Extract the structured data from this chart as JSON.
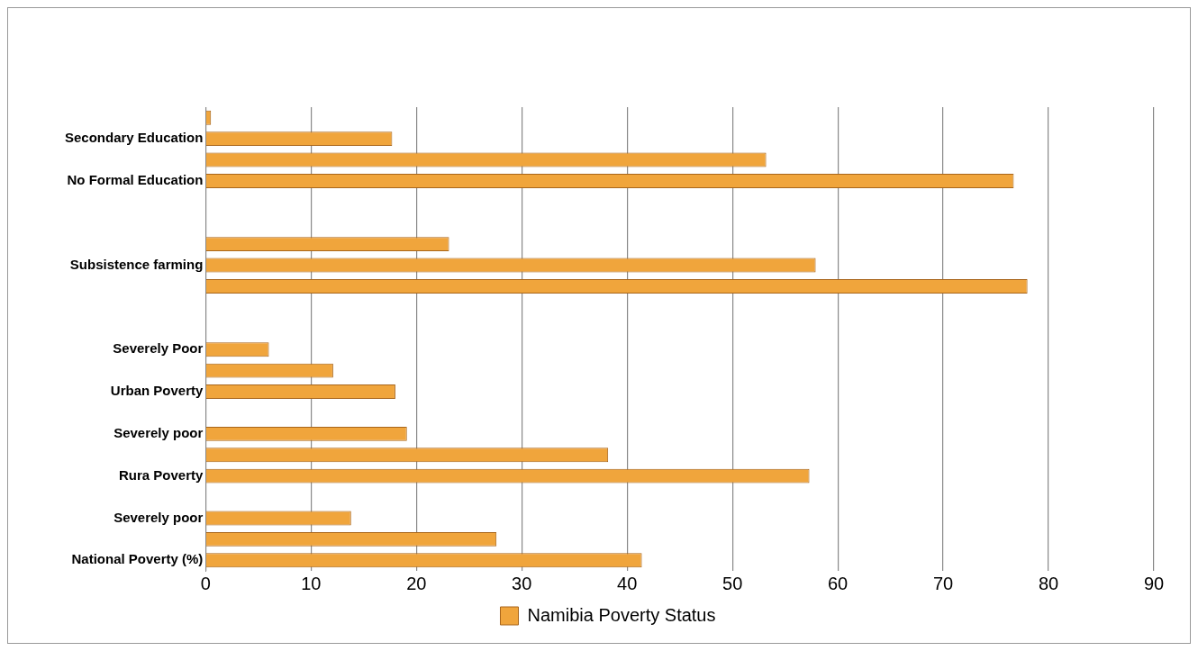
{
  "chart_data": {
    "type": "bar",
    "orientation": "horizontal",
    "categories": [
      null,
      "Secondary Education",
      null,
      "No Formal Education",
      null,
      null,
      null,
      "Subsistence farming",
      null,
      null,
      null,
      "Severely Poor",
      null,
      "Urban Poverty",
      null,
      "Severely poor",
      null,
      "Rura Poverty",
      null,
      "Severely poor",
      null,
      "National Poverty (%)"
    ],
    "series": [
      {
        "name": "Namibia Poverty Status",
        "color": "#f0a53c",
        "values": [
          0.5,
          17.7,
          53.2,
          76.7,
          null,
          null,
          23.1,
          57.9,
          78.0,
          null,
          null,
          6.0,
          12.1,
          18.0,
          null,
          19.1,
          38.2,
          57.3,
          null,
          13.8,
          27.6,
          41.4
        ]
      }
    ],
    "xlim": [
      0,
      90
    ],
    "xticks": [
      0,
      10,
      20,
      30,
      40,
      50,
      60,
      70,
      80,
      90
    ],
    "grid": "x",
    "legend": "bottom"
  }
}
